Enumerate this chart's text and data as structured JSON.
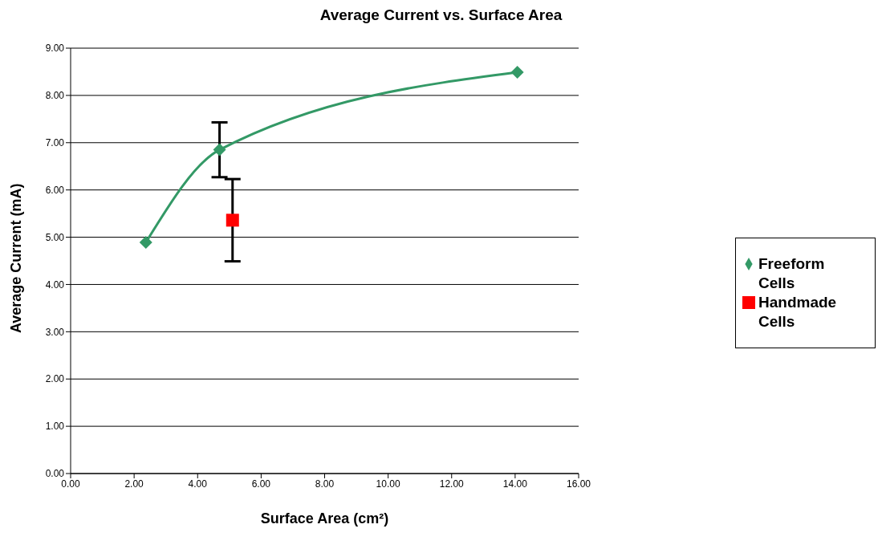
{
  "chart_data": {
    "type": "line",
    "title": "Average Current vs. Surface Area",
    "xlabel": "Surface Area (cm²)",
    "ylabel": "Average Current (mA)",
    "xlim": [
      0,
      16
    ],
    "xticks": [
      {
        "value": 0,
        "label": "0.00"
      },
      {
        "value": 2,
        "label": "2.00"
      },
      {
        "value": 4,
        "label": "4.00"
      },
      {
        "value": 6,
        "label": "6.00"
      },
      {
        "value": 8,
        "label": "8.00"
      },
      {
        "value": 10,
        "label": "10.00"
      },
      {
        "value": 12,
        "label": "12.00"
      },
      {
        "value": 14,
        "label": "14.00"
      },
      {
        "value": 16,
        "label": "16.00"
      }
    ],
    "ylim": [
      0,
      9
    ],
    "yticks": [
      {
        "value": 0,
        "label": "0.00"
      },
      {
        "value": 1,
        "label": "1.00"
      },
      {
        "value": 2,
        "label": "2.00"
      },
      {
        "value": 3,
        "label": "3.00"
      },
      {
        "value": 4,
        "label": "4.00"
      },
      {
        "value": 5,
        "label": "5.00"
      },
      {
        "value": 6,
        "label": "6.00"
      },
      {
        "value": 7,
        "label": "7.00"
      },
      {
        "value": 8,
        "label": "8.00"
      },
      {
        "value": 9,
        "label": "9.00"
      }
    ],
    "grid": "y",
    "legend": "right",
    "series": [
      {
        "name": "Freeform Cells",
        "color": "#339966",
        "marker": "diamond",
        "x": [
          2.37,
          4.69,
          14.07
        ],
        "values": [
          4.89,
          6.85,
          8.49
        ],
        "errors": [
          null,
          0.58,
          null
        ]
      },
      {
        "name": "Handmade Cells",
        "type": "scatter",
        "color": "#ff0000",
        "marker": "square",
        "x": [
          5.1
        ],
        "values": [
          5.36
        ],
        "errors": [
          0.87
        ]
      }
    ]
  }
}
